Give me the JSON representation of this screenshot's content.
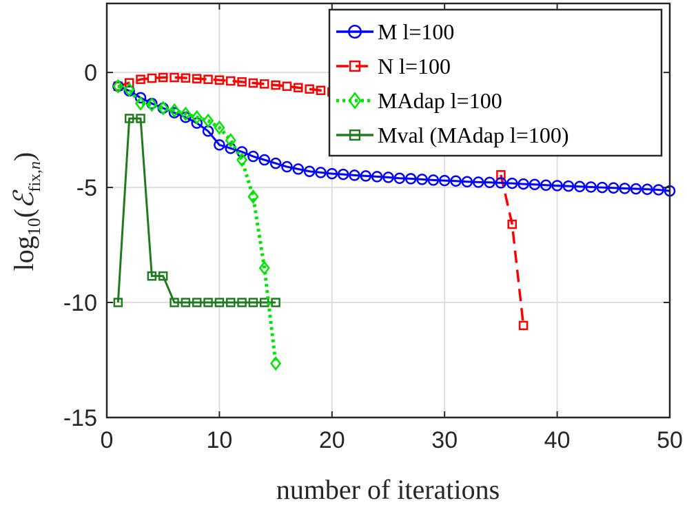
{
  "chart_data": {
    "type": "line",
    "xlabel": "number of iterations",
    "ylabel": {
      "base": "log",
      "sub": "10",
      "open": "(",
      "symbol": "ℰ",
      "subscript": "fix,",
      "subscript_var": "n",
      "close": ")"
    },
    "xlim": [
      0,
      50
    ],
    "ylim": [
      -15,
      3
    ],
    "xticks": [
      0,
      10,
      20,
      30,
      40,
      50
    ],
    "yticks": [
      0,
      -5,
      -10,
      -15
    ],
    "xtick_labels": [
      "0",
      "10",
      "20",
      "30",
      "40",
      "50"
    ],
    "ytick_labels": [
      "0",
      "-5",
      "-10",
      "-15"
    ],
    "grid": true,
    "legend_position": "top-right",
    "series": [
      {
        "name": "M l=100",
        "color": "#0000ff",
        "marker": "circle",
        "line": "solid",
        "x": [
          1,
          2,
          3,
          4,
          5,
          6,
          7,
          8,
          9,
          10,
          11,
          12,
          13,
          14,
          15,
          16,
          17,
          18,
          19,
          20,
          21,
          22,
          23,
          24,
          25,
          26,
          27,
          28,
          29,
          30,
          31,
          32,
          33,
          34,
          35,
          36,
          37,
          38,
          39,
          40,
          41,
          42,
          43,
          44,
          45,
          46,
          47,
          48,
          49,
          50
        ],
        "y": [
          -0.6,
          -0.8,
          -1.1,
          -1.35,
          -1.55,
          -1.75,
          -1.95,
          -2.2,
          -2.55,
          -3.15,
          -3.3,
          -3.45,
          -3.65,
          -3.8,
          -3.95,
          -4.1,
          -4.2,
          -4.3,
          -4.35,
          -4.4,
          -4.43,
          -4.47,
          -4.5,
          -4.53,
          -4.56,
          -4.6,
          -4.62,
          -4.65,
          -4.68,
          -4.7,
          -4.72,
          -4.75,
          -4.77,
          -4.78,
          -4.8,
          -4.82,
          -4.85,
          -4.87,
          -4.9,
          -4.92,
          -4.94,
          -4.96,
          -4.98,
          -5.0,
          -5.02,
          -5.04,
          -5.06,
          -5.08,
          -5.1,
          -5.15
        ]
      },
      {
        "name": "N l=100",
        "color": "#ff0000",
        "marker": "square",
        "line": "dashed",
        "x": [
          1,
          2,
          3,
          4,
          5,
          6,
          7,
          8,
          9,
          10,
          11,
          12,
          13,
          14,
          15,
          16,
          17,
          18,
          19,
          20,
          35,
          36,
          37
        ],
        "y": [
          -0.6,
          -0.45,
          -0.3,
          -0.25,
          -0.22,
          -0.22,
          -0.24,
          -0.27,
          -0.3,
          -0.33,
          -0.37,
          -0.41,
          -0.46,
          -0.5,
          -0.55,
          -0.6,
          -0.66,
          -0.72,
          -0.78,
          -0.85,
          -4.45,
          -6.6,
          -11.0
        ]
      },
      {
        "name": "MAdap l=100",
        "color": "#00e600",
        "marker": "diamond",
        "line": "dotted",
        "x": [
          1,
          2,
          3,
          4,
          5,
          6,
          7,
          8,
          9,
          10,
          11,
          12,
          13,
          14,
          15
        ],
        "y": [
          -0.6,
          -0.75,
          -1.35,
          -1.4,
          -1.55,
          -1.65,
          -1.8,
          -1.95,
          -2.1,
          -2.4,
          -2.95,
          -3.8,
          -5.4,
          -8.5,
          -12.65
        ]
      },
      {
        "name": "Mval (MAdap l=100)",
        "color": "#1e7b1e",
        "marker": "square",
        "line": "solid",
        "x": [
          1,
          2,
          3,
          4,
          5,
          6,
          7,
          8,
          9,
          10,
          11,
          12,
          13,
          14,
          15
        ],
        "y": [
          -10,
          -2,
          -2,
          -8.85,
          -8.85,
          -10,
          -10,
          -10,
          -10,
          -10,
          -10,
          -10,
          -10,
          -10,
          -10
        ]
      }
    ]
  }
}
